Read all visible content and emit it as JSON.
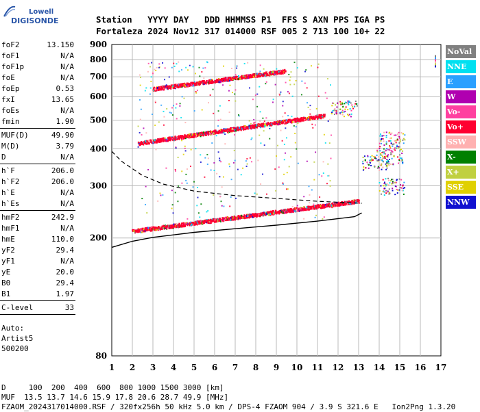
{
  "logo": {
    "line1": "Lowell",
    "line2": "DIGISONDE"
  },
  "header": {
    "labels": "Station   YYYY DAY   DDD HHMMSS P1  FFS S AXN PPS IGA PS",
    "values": "Fortaleza 2024 Nov12 317 014000 RSF 005 2 713 100 10+ 22"
  },
  "params": [
    {
      "name": "foF2",
      "value": "13.150"
    },
    {
      "name": "foF1",
      "value": "N/A"
    },
    {
      "name": "foF1p",
      "value": "N/A"
    },
    {
      "name": "foE",
      "value": "N/A"
    },
    {
      "name": "foEp",
      "value": "0.53"
    },
    {
      "name": "fxI",
      "value": "13.65"
    },
    {
      "name": "foEs",
      "value": "N/A"
    },
    {
      "name": "fmin",
      "value": "1.90"
    },
    {
      "name": "MUF(D)",
      "value": "49.90"
    },
    {
      "name": "M(D)",
      "value": "3.79"
    },
    {
      "name": "D",
      "value": "N/A"
    },
    {
      "name": "h`F",
      "value": "206.0"
    },
    {
      "name": "h`F2",
      "value": "206.0"
    },
    {
      "name": "h`E",
      "value": "N/A"
    },
    {
      "name": "h`Es",
      "value": "N/A"
    },
    {
      "name": "hmF2",
      "value": "242.9"
    },
    {
      "name": "hmF1",
      "value": "N/A"
    },
    {
      "name": "hmE",
      "value": "110.0"
    },
    {
      "name": "yF2",
      "value": "29.4"
    },
    {
      "name": "yF1",
      "value": "N/A"
    },
    {
      "name": "yE",
      "value": "20.0"
    },
    {
      "name": "B0",
      "value": "29.4"
    },
    {
      "name": "B1",
      "value": "1.97"
    },
    {
      "name": "C-level",
      "value": "33"
    }
  ],
  "auto": {
    "line1": "Auto:",
    "line2": "Artist5",
    "line3": "500200"
  },
  "legend": [
    {
      "label": "NoVal",
      "color": "#808080"
    },
    {
      "label": "NNE",
      "color": "#00e0f0"
    },
    {
      "label": "E",
      "color": "#2aa0ff"
    },
    {
      "label": "W",
      "color": "#b000b0"
    },
    {
      "label": "Vo-",
      "color": "#ff40a0"
    },
    {
      "label": "Vo+",
      "color": "#ff0030"
    },
    {
      "label": "SSW",
      "color": "#ffb0b0"
    },
    {
      "label": "X-",
      "color": "#008000"
    },
    {
      "label": "X+",
      "color": "#c0d040"
    },
    {
      "label": "SSE",
      "color": "#e0d000"
    },
    {
      "label": "NNW",
      "color": "#1010d0"
    }
  ],
  "footer": {
    "line1": "D     100  200  400  600  800 1000 1500 3000 [km]",
    "line2": "MUF  13.5 13.7 14.6 15.9 17.8 20.6 28.7 49.9 [MHz]",
    "line3": "FZAOM_2024317014000.RSF / 320fx256h 50 kHz 5.0 km / DPS-4 FZAOM 904 / 3.9 S 321.6 E   Ion2Png 1.3.20"
  },
  "chart_data": {
    "type": "scatter",
    "xlim": [
      1,
      17
    ],
    "ylim": [
      80,
      900
    ],
    "y_scale": "log",
    "x_ticks": [
      1,
      2,
      3,
      4,
      5,
      6,
      7,
      8,
      9,
      10,
      11,
      12,
      13,
      14,
      15,
      16,
      17
    ],
    "y_ticks": [
      80,
      200,
      300,
      400,
      500,
      600,
      700,
      800,
      900
    ],
    "grid": true,
    "traces": [
      {
        "name": "o-trace 1",
        "color": "#ff0030",
        "x_start": 2.0,
        "x_end": 13.0,
        "h_start": 212,
        "h_end": 268
      },
      {
        "name": "o-trace 2",
        "color": "#ff0030",
        "x_start": 2.3,
        "x_end": 11.3,
        "h_start": 420,
        "h_end": 520
      },
      {
        "name": "o-trace 3",
        "color": "#ff0030",
        "x_start": 3.0,
        "x_end": 9.4,
        "h_start": 640,
        "h_end": 735
      }
    ],
    "profile_solid": [
      [
        13.15,
        243
      ],
      [
        12.8,
        236
      ],
      [
        11.0,
        228
      ],
      [
        9.0,
        221
      ],
      [
        7.0,
        215
      ],
      [
        5.0,
        209
      ],
      [
        3.0,
        201
      ],
      [
        2.0,
        195
      ],
      [
        1.0,
        186
      ]
    ],
    "profile_dashed": [
      [
        1.0,
        392
      ],
      [
        1.5,
        362
      ],
      [
        2.5,
        325
      ],
      [
        3.5,
        304
      ],
      [
        5.0,
        288
      ],
      [
        7.0,
        278
      ],
      [
        9.0,
        272
      ],
      [
        11.0,
        266
      ],
      [
        13.15,
        262
      ]
    ],
    "ext_cluster": [
      {
        "x": 13.8,
        "h": 360
      },
      {
        "x": 14.5,
        "h": 380
      },
      {
        "x": 14.6,
        "h": 430
      },
      {
        "x": 12.3,
        "h": 550
      },
      {
        "x": 14.6,
        "h": 300
      }
    ],
    "side_marker": {
      "x": 16.7,
      "h": 790
    }
  }
}
